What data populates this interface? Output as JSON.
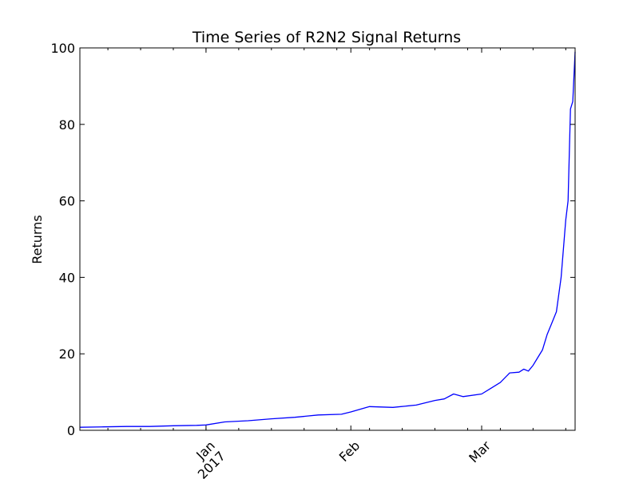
{
  "chart_data": {
    "type": "line",
    "title": "Time Series of R2N2 Signal Returns",
    "xlabel": "",
    "ylabel": "Returns",
    "xlim": [
      "2016-12-05",
      "2017-03-21"
    ],
    "ylim": [
      0,
      100
    ],
    "grid": false,
    "line_color": "#0000ff",
    "x_ticks": [
      {
        "date": "2017-01-01",
        "label": "Jan",
        "sublabel": "2017"
      },
      {
        "date": "2017-02-01",
        "label": "Feb",
        "sublabel": ""
      },
      {
        "date": "2017-03-01",
        "label": "Mar",
        "sublabel": ""
      }
    ],
    "y_ticks": [
      0,
      20,
      40,
      60,
      80,
      100
    ],
    "series": [
      {
        "x": [
          "2016-12-05",
          "2016-12-10",
          "2016-12-15",
          "2016-12-20",
          "2016-12-25",
          "2016-12-30",
          "2017-01-01",
          "2017-01-05",
          "2017-01-10",
          "2017-01-15",
          "2017-01-20",
          "2017-01-25",
          "2017-01-30",
          "2017-02-01",
          "2017-02-05",
          "2017-02-10",
          "2017-02-15",
          "2017-02-19",
          "2017-02-21",
          "2017-02-23",
          "2017-02-25",
          "2017-03-01",
          "2017-03-03",
          "2017-03-05",
          "2017-03-07",
          "2017-03-09",
          "2017-03-10",
          "2017-03-11",
          "2017-03-12",
          "2017-03-13",
          "2017-03-14",
          "2017-03-15",
          "2017-03-16",
          "2017-03-17",
          "2017-03-18",
          "2017-03-19",
          "2017-03-19T12",
          "2017-03-20",
          "2017-03-20T12",
          "2017-03-21"
        ],
        "y": [
          0.8,
          0.9,
          1.0,
          1.0,
          1.2,
          1.3,
          1.4,
          2.2,
          2.5,
          3.0,
          3.4,
          4.0,
          4.2,
          4.8,
          6.2,
          6.0,
          6.6,
          7.8,
          8.2,
          9.5,
          8.8,
          9.5,
          11.0,
          12.5,
          15.0,
          15.2,
          16.0,
          15.5,
          17.0,
          19.0,
          21.0,
          25.0,
          28.0,
          31.0,
          40.0,
          55.0,
          60.0,
          84.0,
          86.0,
          99.0
        ]
      }
    ]
  }
}
